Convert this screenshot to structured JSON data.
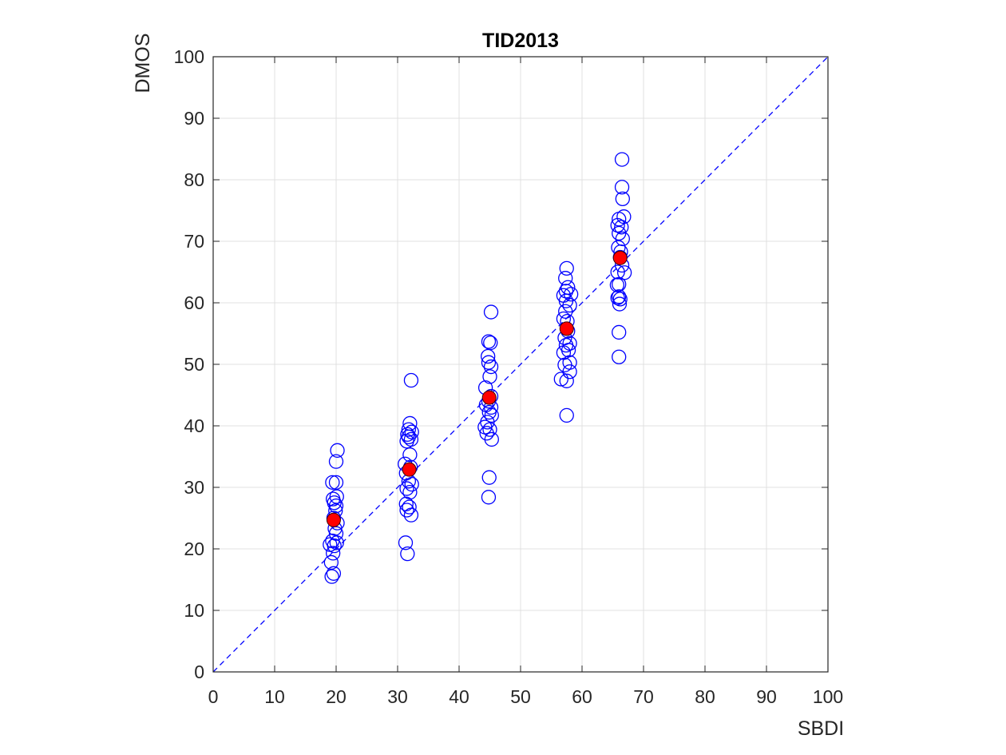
{
  "chart_data": {
    "type": "scatter",
    "title": "TID2013",
    "xlabel": "SBDI",
    "ylabel": "DMOS",
    "xlim": [
      0,
      100
    ],
    "ylim": [
      0,
      100
    ],
    "xticks": [
      "0",
      "10",
      "20",
      "30",
      "40",
      "50",
      "60",
      "70",
      "80",
      "90",
      "100"
    ],
    "yticks": [
      "0",
      "10",
      "20",
      "30",
      "40",
      "50",
      "60",
      "70",
      "80",
      "90",
      "100"
    ],
    "grid": true,
    "colors": {
      "points": "#0000ff",
      "means": "#ff0000",
      "reference": "#0000ff",
      "grid": "#e0e0e0"
    },
    "series": [
      {
        "marker": "open-circle",
        "points": [
          [
            19.3,
            15.5
          ],
          [
            19.6,
            16.0
          ],
          [
            19.2,
            17.8
          ],
          [
            19.5,
            19.3
          ],
          [
            19.7,
            20.5
          ],
          [
            19.0,
            20.7
          ],
          [
            20.1,
            21.0
          ],
          [
            19.4,
            21.3
          ],
          [
            20.0,
            22.5
          ],
          [
            19.8,
            23.3
          ],
          [
            20.2,
            24.2
          ],
          [
            19.6,
            25.0
          ],
          [
            19.9,
            26.2
          ],
          [
            20.0,
            27.0
          ],
          [
            19.7,
            27.5
          ],
          [
            19.5,
            28.1
          ],
          [
            20.1,
            28.5
          ],
          [
            19.4,
            30.8
          ],
          [
            20.0,
            30.8
          ],
          [
            20.0,
            34.2
          ],
          [
            20.2,
            36.0
          ],
          [
            31.6,
            19.2
          ],
          [
            31.3,
            21.0
          ],
          [
            32.2,
            25.5
          ],
          [
            31.5,
            26.3
          ],
          [
            31.9,
            26.8
          ],
          [
            31.4,
            27.3
          ],
          [
            32.0,
            29.2
          ],
          [
            31.5,
            29.8
          ],
          [
            32.3,
            30.5
          ],
          [
            31.8,
            31.0
          ],
          [
            31.4,
            32.3
          ],
          [
            32.1,
            33.3
          ],
          [
            31.2,
            33.8
          ],
          [
            32.0,
            35.3
          ],
          [
            31.5,
            37.5
          ],
          [
            32.2,
            37.8
          ],
          [
            31.8,
            38.2
          ],
          [
            31.6,
            38.6
          ],
          [
            32.3,
            39.0
          ],
          [
            31.8,
            39.4
          ],
          [
            32.0,
            40.4
          ],
          [
            32.2,
            47.4
          ],
          [
            44.8,
            28.4
          ],
          [
            44.9,
            31.6
          ],
          [
            45.3,
            37.8
          ],
          [
            44.5,
            38.8
          ],
          [
            45.0,
            39.4
          ],
          [
            44.2,
            39.8
          ],
          [
            44.6,
            40.6
          ],
          [
            45.3,
            41.7
          ],
          [
            44.9,
            42.2
          ],
          [
            45.2,
            43.0
          ],
          [
            44.4,
            43.4
          ],
          [
            44.8,
            44.0
          ],
          [
            45.2,
            44.8
          ],
          [
            44.3,
            46.2
          ],
          [
            45.0,
            48.0
          ],
          [
            45.2,
            49.6
          ],
          [
            44.8,
            50.3
          ],
          [
            44.7,
            51.3
          ],
          [
            45.1,
            53.5
          ],
          [
            44.8,
            53.7
          ],
          [
            45.2,
            58.5
          ],
          [
            56.6,
            47.6
          ],
          [
            57.5,
            47.3
          ],
          [
            58.0,
            48.8
          ],
          [
            57.2,
            49.9
          ],
          [
            58.0,
            50.3
          ],
          [
            57.0,
            51.9
          ],
          [
            57.8,
            52.3
          ],
          [
            57.4,
            53.1
          ],
          [
            58.0,
            53.4
          ],
          [
            57.2,
            54.3
          ],
          [
            57.7,
            55.4
          ],
          [
            57.0,
            57.4
          ],
          [
            57.6,
            57.0
          ],
          [
            57.3,
            58.6
          ],
          [
            58.0,
            59.6
          ],
          [
            57.4,
            60.3
          ],
          [
            57.0,
            61.2
          ],
          [
            58.2,
            61.4
          ],
          [
            57.4,
            61.9
          ],
          [
            57.7,
            62.5
          ],
          [
            57.3,
            64.0
          ],
          [
            57.5,
            65.6
          ],
          [
            57.5,
            41.7
          ],
          [
            66.5,
            83.3
          ],
          [
            66.5,
            78.8
          ],
          [
            66.6,
            76.9
          ],
          [
            66.8,
            74.0
          ],
          [
            66.0,
            73.6
          ],
          [
            65.8,
            72.6
          ],
          [
            66.4,
            72.3
          ],
          [
            66.0,
            71.3
          ],
          [
            66.6,
            70.4
          ],
          [
            65.9,
            69.0
          ],
          [
            66.3,
            68.3
          ],
          [
            66.2,
            67.4
          ],
          [
            66.5,
            66.1
          ],
          [
            65.8,
            65.0
          ],
          [
            66.9,
            64.9
          ],
          [
            66.0,
            63.0
          ],
          [
            65.7,
            62.9
          ],
          [
            66.0,
            61.0
          ],
          [
            66.2,
            60.6
          ],
          [
            65.8,
            60.8
          ],
          [
            66.1,
            59.8
          ],
          [
            66.0,
            55.2
          ],
          [
            66.0,
            51.2
          ]
        ]
      },
      {
        "marker": "filled-circle",
        "points": [
          [
            19.6,
            24.7
          ],
          [
            31.9,
            32.9
          ],
          [
            44.9,
            44.6
          ],
          [
            57.5,
            55.8
          ],
          [
            66.2,
            67.3
          ]
        ]
      }
    ],
    "reference_line": {
      "style": "dashed",
      "from": [
        0,
        0
      ],
      "to": [
        100,
        100
      ]
    }
  }
}
